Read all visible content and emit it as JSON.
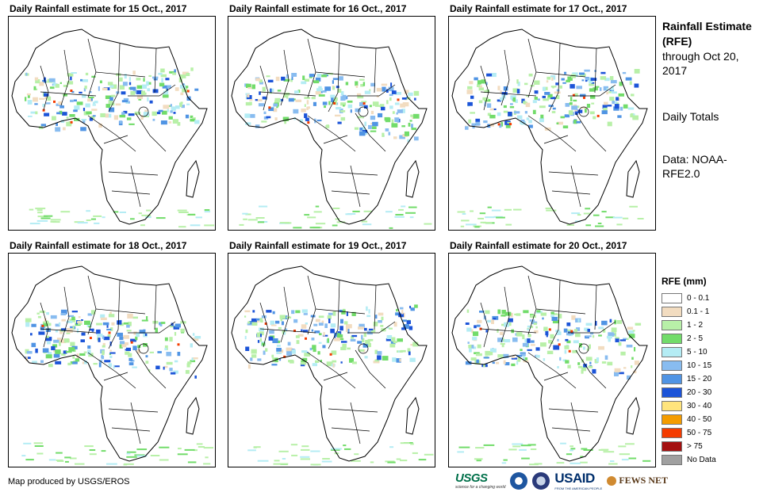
{
  "panels": [
    {
      "title": "Daily Rainfall estimate for 15 Oct., 2017"
    },
    {
      "title": "Daily Rainfall estimate for 16 Oct., 2017"
    },
    {
      "title": "Daily Rainfall estimate for 17 Oct., 2017"
    },
    {
      "title": "Daily Rainfall estimate for 18 Oct., 2017"
    },
    {
      "title": "Daily Rainfall estimate for 19 Oct., 2017"
    },
    {
      "title": "Daily Rainfall estimate for 20 Oct., 2017"
    }
  ],
  "side": {
    "title": "Rainfall Estimate (RFE)",
    "through": "through Oct 20, 2017",
    "totals": "Daily Totals",
    "data_source": "Data: NOAA-RFE2.0"
  },
  "legend": {
    "title": "RFE (mm)",
    "items": [
      {
        "label": "0 - 0.1",
        "color": "#ffffff"
      },
      {
        "label": "0.1 - 1",
        "color": "#f2dcc0"
      },
      {
        "label": "1 - 2",
        "color": "#b8f0a8"
      },
      {
        "label": "2 - 5",
        "color": "#72dc6a"
      },
      {
        "label": "5 - 10",
        "color": "#b4ecf4"
      },
      {
        "label": "10 - 15",
        "color": "#88bcf0"
      },
      {
        "label": "15 - 20",
        "color": "#5094e4"
      },
      {
        "label": "20 - 30",
        "color": "#1c54d8"
      },
      {
        "label": "30 - 40",
        "color": "#ffe47c"
      },
      {
        "label": "40 - 50",
        "color": "#f49c00"
      },
      {
        "label": "50 - 75",
        "color": "#f43c00"
      },
      {
        "label": "> 75",
        "color": "#a41010"
      },
      {
        "label": "No Data",
        "color": "#a0a0a0"
      }
    ]
  },
  "credit": "Map produced by USGS/EROS",
  "logos": {
    "usgs": "USGS",
    "usgs_tagline": "science for a changing world",
    "usaid": "USAID",
    "usaid_tagline": "FROM THE AMERICAN PEOPLE",
    "fews": "FEWS NET"
  }
}
